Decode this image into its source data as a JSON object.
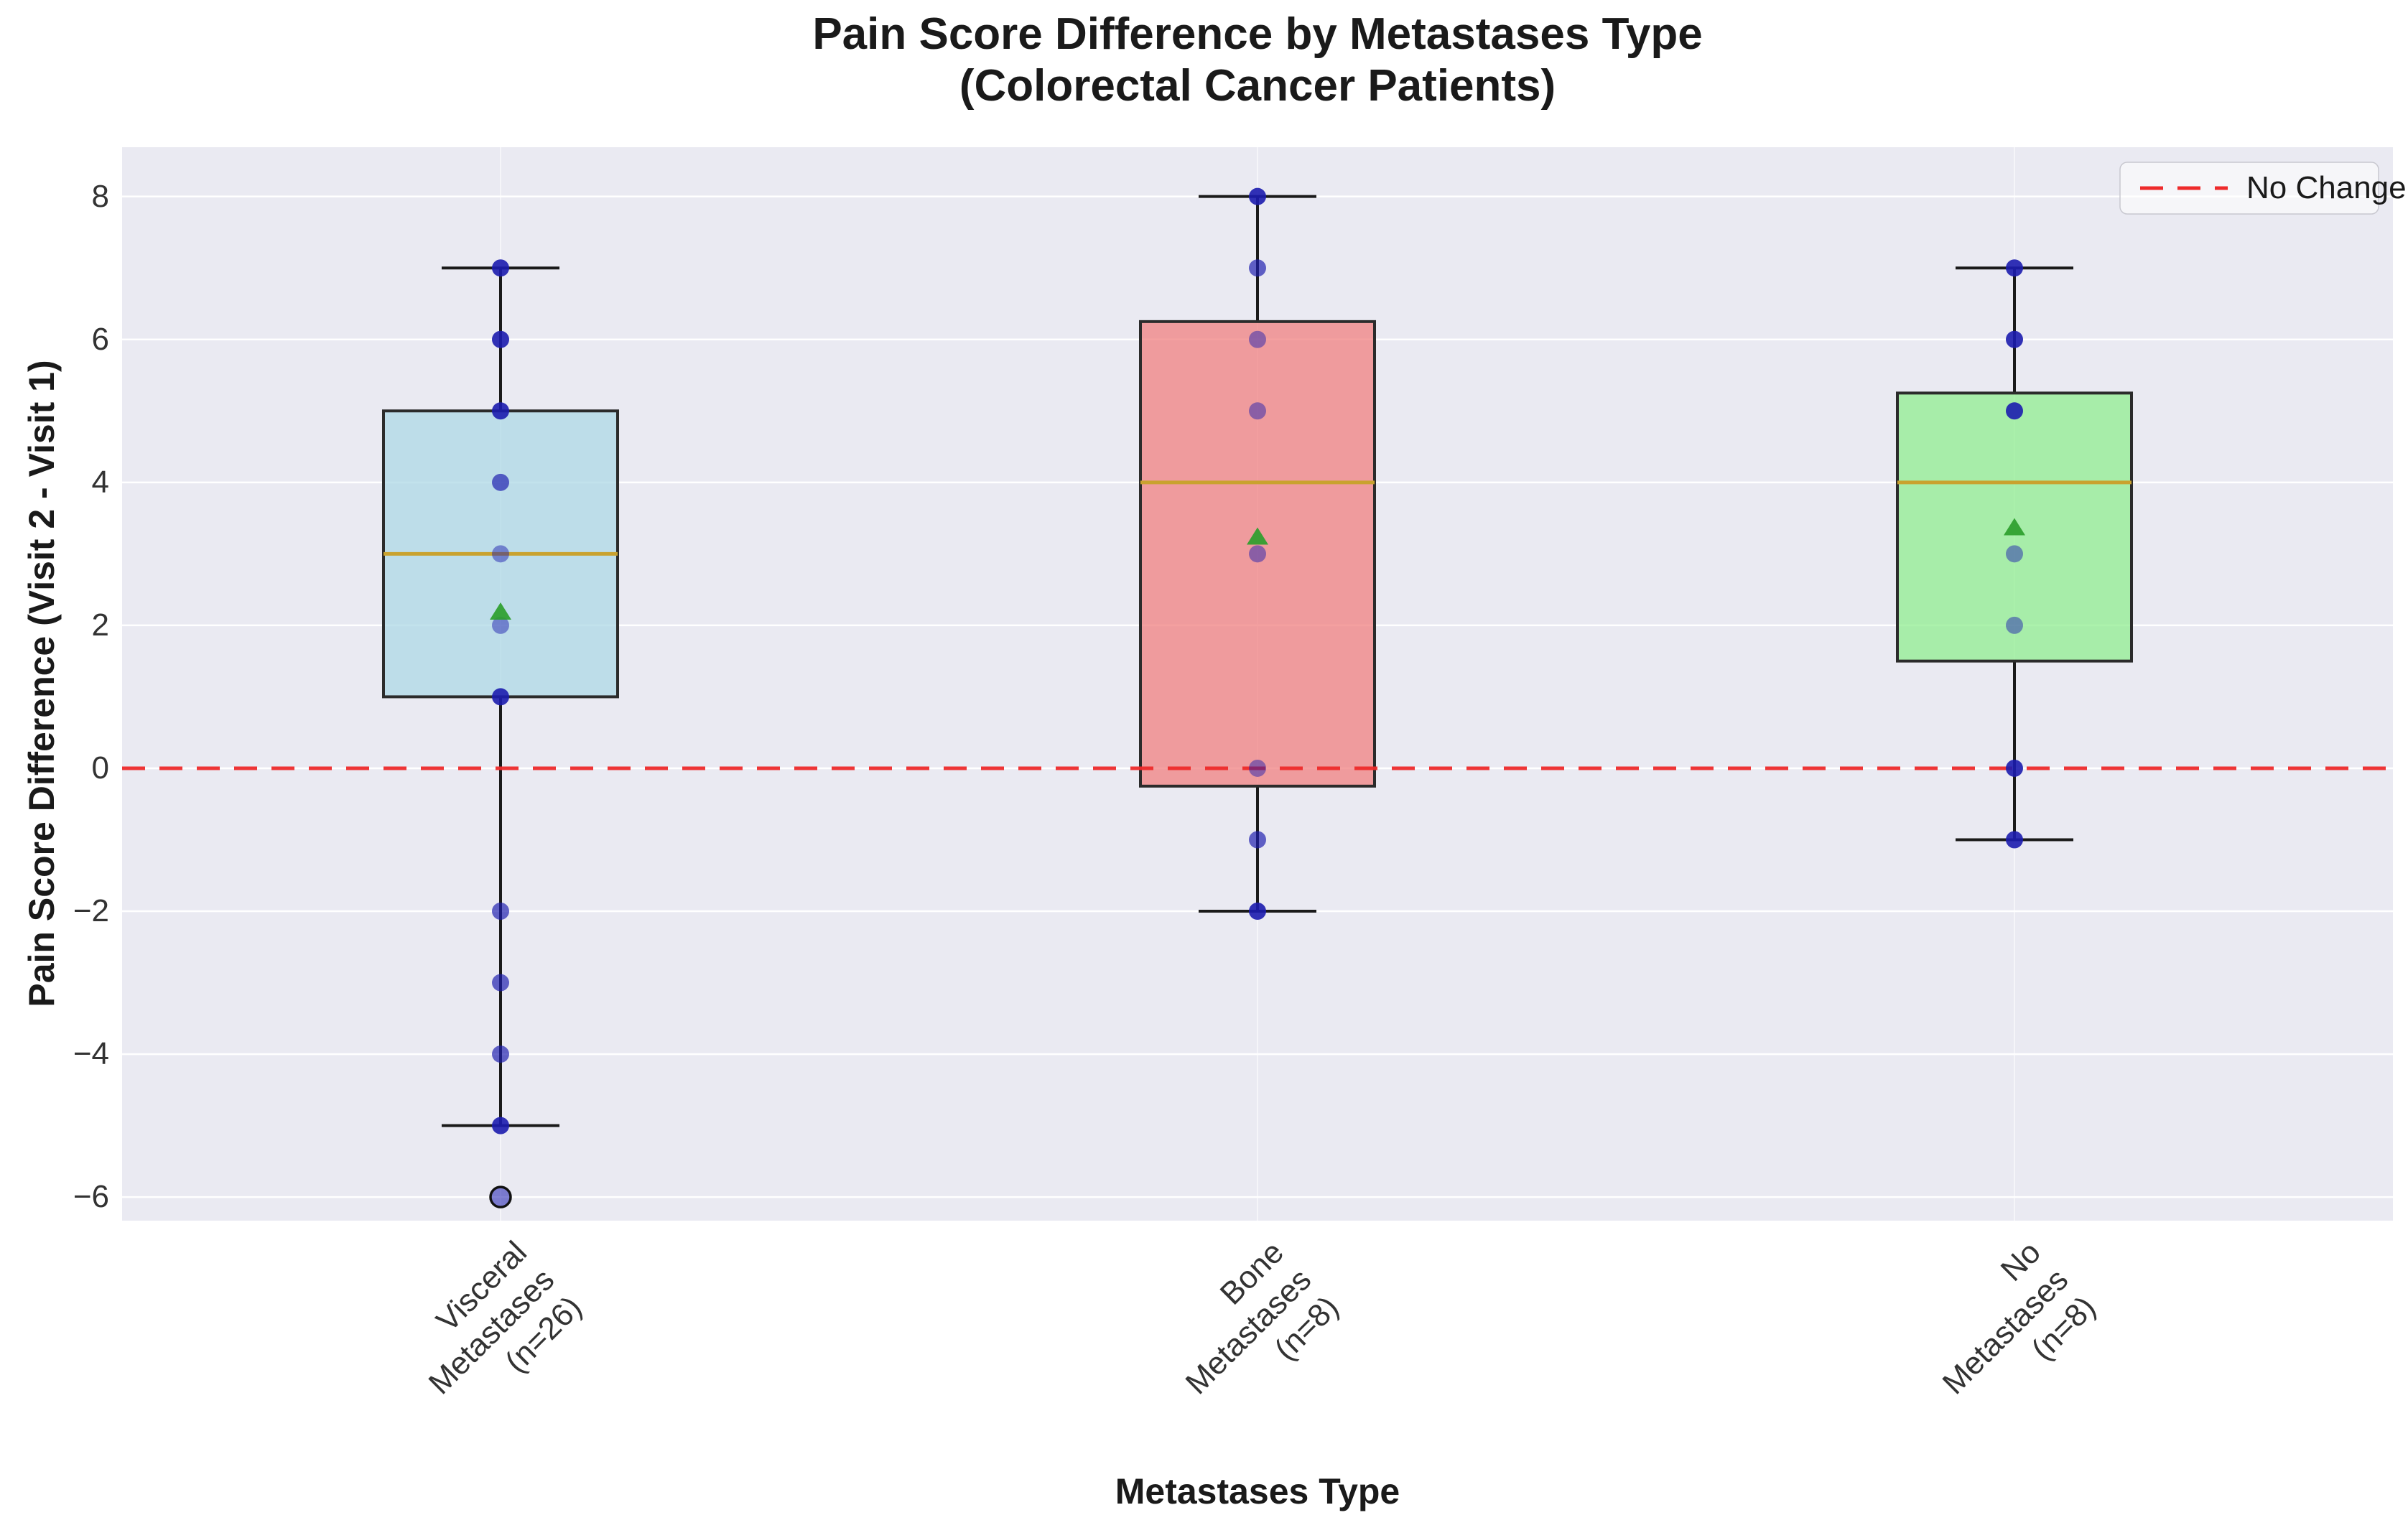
{
  "title": {
    "line1": "Pain Score Difference by Metastases Type",
    "line2": "(Colorectal Cancer Patients)"
  },
  "axes": {
    "x_label": "Metastases Type",
    "y_label": "Pain Score Difference (Visit 2 - Visit 1)",
    "y_tick_labels": [
      "8",
      "6",
      "4",
      "2",
      "0",
      "−2",
      "−4",
      "−6"
    ]
  },
  "legend": {
    "label": "No Change"
  },
  "colors": {
    "plot_background": "#eaeaf2",
    "gridline": "#ffffff",
    "box_edge": "#2b2b2b",
    "median_line": "#c9a22f",
    "whisker": "#1a1a1a",
    "scatter_point": "#1c1cae",
    "mean_marker": "#2d9e2d",
    "reference_line": "#ee2b2b",
    "visceral_fill": "#add8e6",
    "bone_fill": "#f08080",
    "none_fill": "#90ee90"
  },
  "chart_data": {
    "type": "box",
    "title": "Pain Score Difference by Metastases Type (Colorectal Cancer Patients)",
    "xlabel": "Metastases Type",
    "ylabel": "Pain Score Difference (Visit 2 - Visit 1)",
    "ylim": [
      -6.33,
      8.69
    ],
    "yticks": [
      8,
      6,
      4,
      2,
      0,
      -2,
      -4,
      -6
    ],
    "grid": true,
    "legend_position": "upper right",
    "reference_line": {
      "y": 0,
      "style": "dashed",
      "label": "No Change"
    },
    "groups": [
      {
        "category": "Visceral Metastases\n(n=26)",
        "label": "Visceral Metastases",
        "n": 26,
        "fill": "#add8e6",
        "whisker_low": -5,
        "q1": 1,
        "median": 3,
        "q3": 5,
        "whisker_high": 7,
        "mean": 2.2,
        "outliers": [
          -6
        ],
        "visible_points": [
          {
            "value": 7,
            "shade": "dark"
          },
          {
            "value": 6,
            "shade": "dark"
          },
          {
            "value": 5,
            "shade": "dark"
          },
          {
            "value": 4,
            "shade": "mid"
          },
          {
            "value": 3,
            "shade": "light"
          },
          {
            "value": 2,
            "shade": "light"
          },
          {
            "value": 1,
            "shade": "dark"
          },
          {
            "value": -2,
            "shade": "mid"
          },
          {
            "value": -3,
            "shade": "mid"
          },
          {
            "value": -4,
            "shade": "mid"
          },
          {
            "value": -5,
            "shade": "dark"
          }
        ]
      },
      {
        "category": "Bone Metastases\n(n=8)",
        "label": "Bone Metastases",
        "n": 8,
        "fill": "#f08080",
        "values": [
          8,
          7,
          6,
          5,
          3,
          0,
          -1,
          -2
        ],
        "whisker_low": -2,
        "q1": -0.25,
        "median": 4,
        "q3": 6.25,
        "whisker_high": 8,
        "mean": 3.25,
        "outliers": [],
        "visible_points": [
          {
            "value": 8,
            "shade": "dark"
          },
          {
            "value": 7,
            "shade": "mid"
          },
          {
            "value": 6,
            "shade": "light"
          },
          {
            "value": 5,
            "shade": "light"
          },
          {
            "value": 3,
            "shade": "light"
          },
          {
            "value": 0,
            "shade": "light"
          },
          {
            "value": -1,
            "shade": "mid"
          },
          {
            "value": -2,
            "shade": "dark"
          }
        ]
      },
      {
        "category": "No Metastases\n(n=8)",
        "label": "No Metastases",
        "n": 8,
        "fill": "#90ee90",
        "values": [
          7,
          6,
          5,
          5,
          3,
          2,
          0,
          -1
        ],
        "whisker_low": -1,
        "q1": 1.5,
        "median": 4,
        "q3": 5.25,
        "whisker_high": 7,
        "mean": 3.38,
        "outliers": [],
        "visible_points": [
          {
            "value": 7,
            "shade": "dark"
          },
          {
            "value": 6,
            "shade": "dark"
          },
          {
            "value": 5,
            "shade": "dark"
          },
          {
            "value": 3,
            "shade": "light"
          },
          {
            "value": 2,
            "shade": "light"
          },
          {
            "value": 0,
            "shade": "dark"
          },
          {
            "value": -1,
            "shade": "dark"
          }
        ]
      }
    ]
  }
}
